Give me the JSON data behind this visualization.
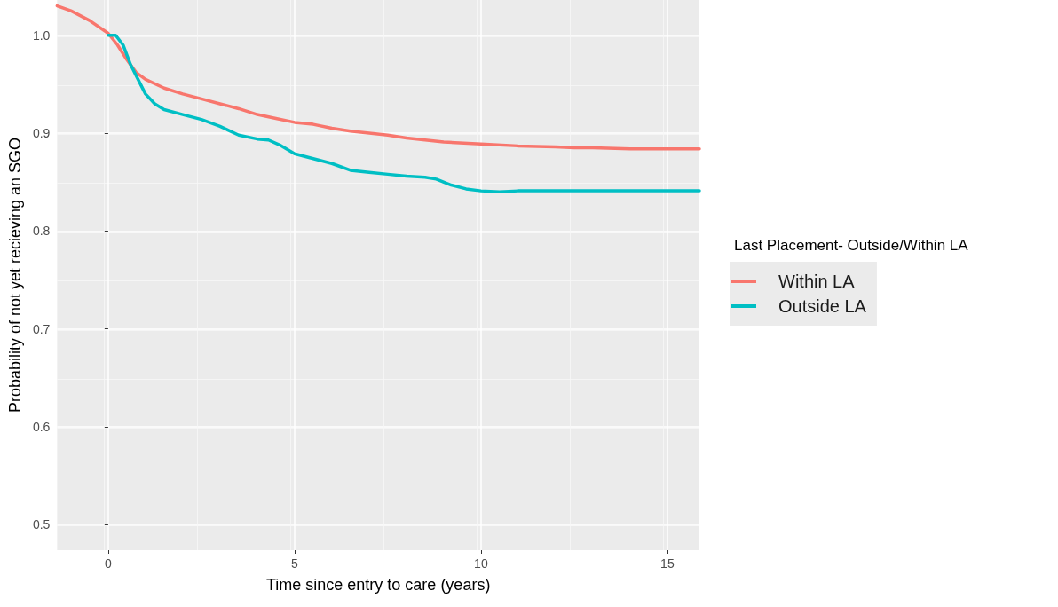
{
  "chart_data": {
    "type": "line",
    "xlabel": "Time since entry to care (years)",
    "ylabel": "Probability of not yet recieving an SGO",
    "legend_title": "Last Placement- Outside/Within LA",
    "legend": "right",
    "grid": true,
    "marker": "none",
    "line_style": "solid",
    "xlim": [
      -1.37,
      15.86
    ],
    "xticks": [
      0,
      5,
      10,
      15
    ],
    "ylim": [
      0.474,
      1.036
    ],
    "yticks": [
      0.5,
      0.6,
      0.7,
      0.8,
      0.9,
      {
        "value": 1,
        "label": "1.0"
      }
    ],
    "series": [
      {
        "name": "Within LA",
        "color": "#f8766d",
        "x": [
          -1.37,
          -1,
          -0.5,
          0,
          0.25,
          0.5,
          0.75,
          1,
          1.5,
          2,
          2.5,
          3,
          3.5,
          4,
          4.5,
          5,
          5.5,
          6,
          6.5,
          7,
          7.5,
          8,
          8.5,
          9,
          10,
          11,
          12,
          12.5,
          13,
          14,
          15,
          15.86
        ],
        "values": [
          1.03,
          1.025,
          1.015,
          1.002,
          0.99,
          0.975,
          0.962,
          0.955,
          0.946,
          0.94,
          0.935,
          0.93,
          0.925,
          0.919,
          0.915,
          0.911,
          0.909,
          0.905,
          0.902,
          0.9,
          0.898,
          0.895,
          0.893,
          0.891,
          0.889,
          0.887,
          0.886,
          0.885,
          0.885,
          0.884,
          0.884,
          0.884
        ]
      },
      {
        "name": "Outside LA",
        "color": "#00bfc4",
        "x": [
          0,
          0.2,
          0.4,
          0.6,
          0.8,
          1,
          1.25,
          1.5,
          2,
          2.5,
          3,
          3.5,
          4,
          4.3,
          4.6,
          5,
          5.5,
          6,
          6.5,
          7,
          7.5,
          8,
          8.5,
          8.8,
          9.2,
          9.6,
          10,
          10.5,
          11,
          15.86
        ],
        "values": [
          1.0,
          1.0,
          0.99,
          0.97,
          0.955,
          0.94,
          0.93,
          0.924,
          0.919,
          0.914,
          0.907,
          0.898,
          0.894,
          0.893,
          0.888,
          0.879,
          0.874,
          0.869,
          0.862,
          0.86,
          0.858,
          0.856,
          0.855,
          0.853,
          0.847,
          0.843,
          0.841,
          0.84,
          0.841,
          0.841
        ]
      }
    ]
  }
}
